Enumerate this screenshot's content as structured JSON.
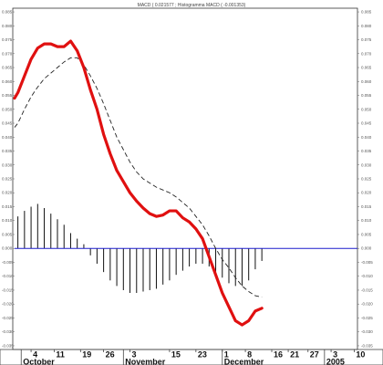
{
  "chart_data": {
    "type": "line",
    "title": "MACD ( 0.021577 ; Histogramma MACD ( -0.001353)",
    "ylim": [
      -0.036,
      0.086
    ],
    "y_ticks": [
      "0.085",
      "0.080",
      "0.075",
      "0.070",
      "0.065",
      "0.060",
      "0.055",
      "0.050",
      "0.045",
      "0.040",
      "0.035",
      "0.030",
      "0.025",
      "0.020",
      "0.015",
      "0.010",
      "0.005",
      "0.000",
      "-0.005",
      "-0.010",
      "-0.015",
      "-0.020",
      "-0.025",
      "-0.030",
      "-0.035"
    ],
    "x_day_ticks": [
      {
        "label": "4",
        "x": 4
      },
      {
        "label": "11",
        "x": 11
      },
      {
        "label": "19",
        "x": 19
      },
      {
        "label": "26",
        "x": 26
      },
      {
        "label": "3",
        "x": 34
      },
      {
        "label": "15",
        "x": 46
      },
      {
        "label": "23",
        "x": 54
      },
      {
        "label": "1",
        "x": 62
      },
      {
        "label": "8",
        "x": 69
      },
      {
        "label": "16",
        "x": 77
      },
      {
        "label": "21",
        "x": 82
      },
      {
        "label": "27",
        "x": 88
      },
      {
        "label": "3",
        "x": 95
      },
      {
        "label": "10",
        "x": 102
      }
    ],
    "x_months": [
      {
        "label": "October",
        "x": 1
      },
      {
        "label": "November",
        "x": 32
      },
      {
        "label": "December",
        "x": 62
      },
      {
        "label": "2005",
        "x": 93
      }
    ],
    "zero_line_color": "#1d1dcc",
    "series": [
      {
        "color": "#e01010",
        "style": "solid-thick",
        "points": [
          [
            -1,
            0.054
          ],
          [
            0,
            0.056
          ],
          [
            2,
            0.062
          ],
          [
            4,
            0.068
          ],
          [
            6,
            0.072
          ],
          [
            8,
            0.0735
          ],
          [
            10,
            0.0735
          ],
          [
            12,
            0.0725
          ],
          [
            14,
            0.0725
          ],
          [
            16,
            0.0745
          ],
          [
            18,
            0.071
          ],
          [
            20,
            0.065
          ],
          [
            22,
            0.057
          ],
          [
            24,
            0.05
          ],
          [
            26,
            0.041
          ],
          [
            28,
            0.034
          ],
          [
            30,
            0.028
          ],
          [
            32,
            0.024
          ],
          [
            34,
            0.02
          ],
          [
            36,
            0.017
          ],
          [
            38,
            0.0145
          ],
          [
            40,
            0.0125
          ],
          [
            42,
            0.0115
          ],
          [
            44,
            0.012
          ],
          [
            46,
            0.0135
          ],
          [
            48,
            0.0135
          ],
          [
            50,
            0.011
          ],
          [
            52,
            0.0095
          ],
          [
            54,
            0.007
          ],
          [
            56,
            0.0035
          ],
          [
            58,
            -0.003
          ],
          [
            60,
            -0.0095
          ],
          [
            62,
            -0.016
          ],
          [
            64,
            -0.021
          ],
          [
            66,
            -0.026
          ],
          [
            68,
            -0.0275
          ],
          [
            70,
            -0.026
          ],
          [
            72,
            -0.0225
          ],
          [
            74,
            -0.0215
          ]
        ]
      },
      {
        "color": "#222222",
        "style": "dashed",
        "points": [
          [
            -1,
            0.0435
          ],
          [
            0,
            0.045
          ],
          [
            2,
            0.05
          ],
          [
            4,
            0.0545
          ],
          [
            6,
            0.058
          ],
          [
            8,
            0.061
          ],
          [
            10,
            0.063
          ],
          [
            12,
            0.065
          ],
          [
            14,
            0.067
          ],
          [
            16,
            0.0685
          ],
          [
            18,
            0.0685
          ],
          [
            20,
            0.066
          ],
          [
            22,
            0.062
          ],
          [
            24,
            0.0575
          ],
          [
            26,
            0.052
          ],
          [
            28,
            0.046
          ],
          [
            30,
            0.04
          ],
          [
            32,
            0.0355
          ],
          [
            34,
            0.031
          ],
          [
            36,
            0.0275
          ],
          [
            38,
            0.025
          ],
          [
            40,
            0.0235
          ],
          [
            42,
            0.022
          ],
          [
            44,
            0.021
          ],
          [
            46,
            0.02
          ],
          [
            48,
            0.0185
          ],
          [
            50,
            0.0165
          ],
          [
            52,
            0.0145
          ],
          [
            54,
            0.0115
          ],
          [
            56,
            0.0085
          ],
          [
            58,
            0.0045
          ],
          [
            60,
            0
          ],
          [
            62,
            -0.004
          ],
          [
            64,
            -0.007
          ],
          [
            66,
            -0.0105
          ],
          [
            68,
            -0.0135
          ],
          [
            70,
            -0.0155
          ],
          [
            72,
            -0.017
          ],
          [
            74,
            -0.0175
          ]
        ]
      }
    ],
    "histogram": {
      "color": "#111111",
      "bars": [
        [
          0,
          0.0115
        ],
        [
          2,
          0.0135
        ],
        [
          4,
          0.015
        ],
        [
          6,
          0.016
        ],
        [
          8,
          0.0145
        ],
        [
          10,
          0.0125
        ],
        [
          12,
          0.0105
        ],
        [
          14,
          0.0085
        ],
        [
          16,
          0.0055
        ],
        [
          18,
          0.0035
        ],
        [
          20,
          0.0015
        ],
        [
          22,
          -0.0025
        ],
        [
          24,
          -0.0055
        ],
        [
          26,
          -0.0085
        ],
        [
          28,
          -0.0115
        ],
        [
          30,
          -0.0135
        ],
        [
          32,
          -0.015
        ],
        [
          34,
          -0.016
        ],
        [
          36,
          -0.016
        ],
        [
          38,
          -0.0155
        ],
        [
          40,
          -0.015
        ],
        [
          42,
          -0.0145
        ],
        [
          44,
          -0.013
        ],
        [
          46,
          -0.0115
        ],
        [
          48,
          -0.0095
        ],
        [
          50,
          -0.008
        ],
        [
          52,
          -0.0065
        ],
        [
          54,
          -0.0055
        ],
        [
          56,
          -0.0055
        ],
        [
          58,
          -0.0065
        ],
        [
          60,
          -0.0085
        ],
        [
          62,
          -0.0105
        ],
        [
          64,
          -0.0125
        ],
        [
          66,
          -0.0135
        ],
        [
          68,
          -0.0135
        ],
        [
          70,
          -0.0115
        ],
        [
          72,
          -0.0075
        ],
        [
          74,
          -0.0045
        ]
      ]
    }
  }
}
